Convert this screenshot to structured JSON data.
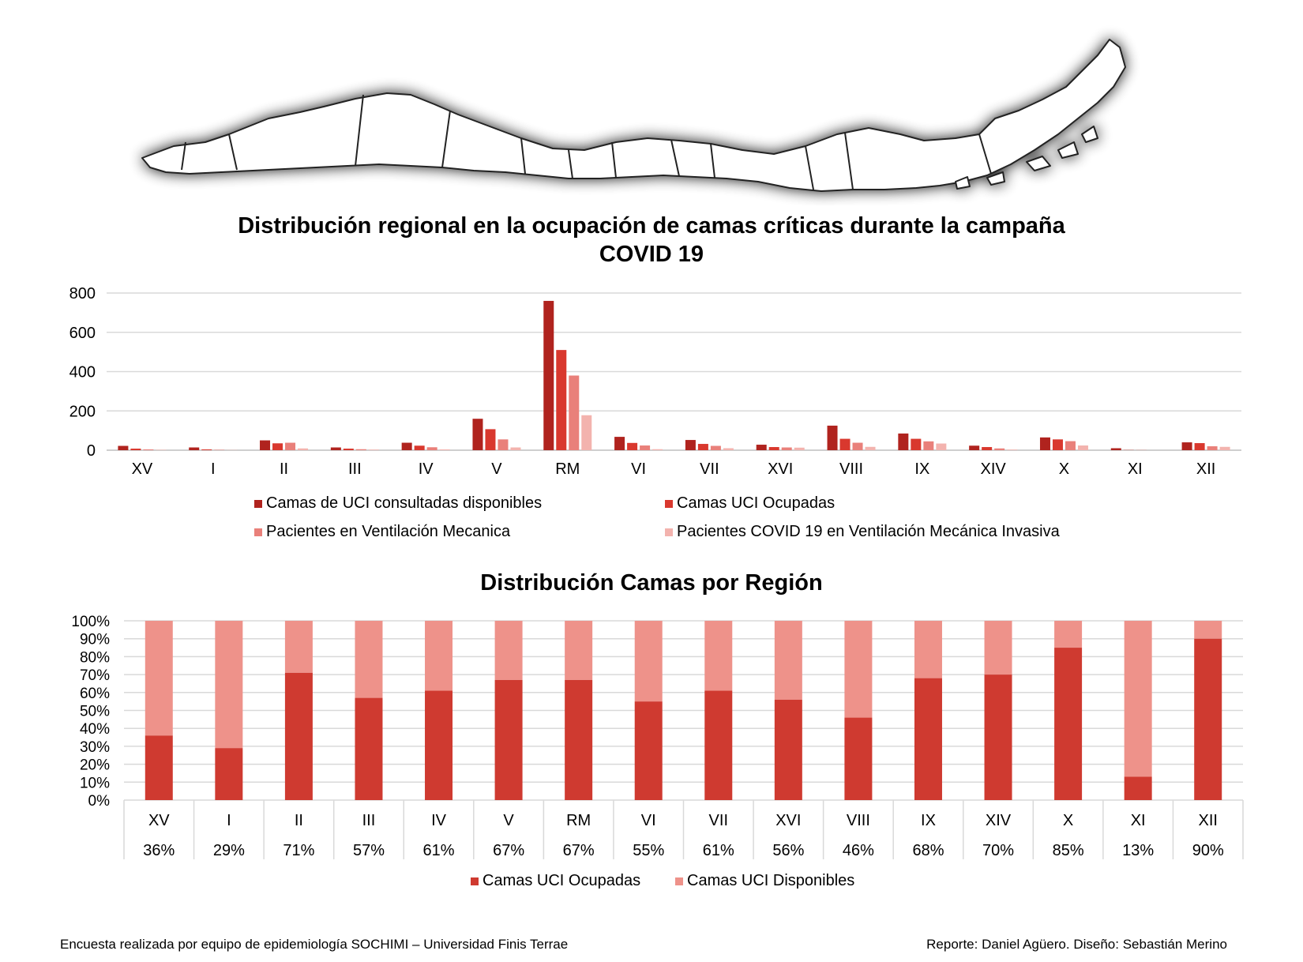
{
  "colors": {
    "avail": "#b0231e",
    "occupied": "#d9382e",
    "vent": "#e9807a",
    "covid": "#f3b3ae",
    "pct_occupied": "#cf3a30",
    "pct_available": "#ee928a",
    "grid": "#d9d9d9"
  },
  "map": {
    "icon": "chile-regions-map"
  },
  "chart_data": [
    {
      "type": "bar",
      "title": "Distribución regional en la ocupación de camas críticas durante la campaña COVID 19",
      "title_lines": [
        "Distribución regional en la ocupación de camas críticas durante la campaña",
        "COVID 19"
      ],
      "categories": [
        "XV",
        "I",
        "II",
        "III",
        "IV",
        "V",
        "RM",
        "VI",
        "VII",
        "XVI",
        "VIII",
        "IX",
        "XIV",
        "X",
        "XI",
        "XII"
      ],
      "ylim": [
        0,
        800
      ],
      "yticks": [
        "0",
        "200",
        "400",
        "600",
        "800"
      ],
      "grid": true,
      "legend_position": "bottom",
      "series": [
        {
          "name": "Camas de UCI consultadas disponibles",
          "color": "#b0231e",
          "values": [
            22,
            14,
            50,
            14,
            38,
            160,
            760,
            68,
            52,
            28,
            125,
            85,
            23,
            65,
            10,
            40
          ]
        },
        {
          "name": "Camas UCI Ocupadas",
          "color": "#d9382e",
          "values": [
            8,
            4,
            35,
            8,
            23,
            107,
            510,
            37,
            32,
            16,
            58,
            58,
            16,
            55,
            1,
            36
          ]
        },
        {
          "name": "Pacientes en Ventilación Mecanica",
          "color": "#e9807a",
          "values": [
            4,
            2,
            38,
            5,
            15,
            55,
            380,
            24,
            22,
            14,
            38,
            45,
            9,
            46,
            1,
            20
          ]
        },
        {
          "name": "Pacientes COVID 19 en Ventilación Mecánica Invasiva",
          "color": "#f3b3ae",
          "values": [
            2,
            1,
            9,
            3,
            4,
            14,
            178,
            5,
            10,
            13,
            17,
            34,
            3,
            24,
            0,
            17
          ]
        }
      ]
    },
    {
      "type": "bar",
      "stacked": true,
      "percent": true,
      "title": "Distribución Camas por Región",
      "categories": [
        "XV",
        "I",
        "II",
        "III",
        "IV",
        "V",
        "RM",
        "VI",
        "VII",
        "XVI",
        "VIII",
        "IX",
        "XIV",
        "X",
        "XI",
        "XII"
      ],
      "ylim": [
        0,
        100
      ],
      "yticks": [
        "0%",
        "10%",
        "20%",
        "30%",
        "40%",
        "50%",
        "60%",
        "70%",
        "80%",
        "90%",
        "100%"
      ],
      "grid": true,
      "legend_position": "bottom",
      "table_row": [
        "36%",
        "29%",
        "71%",
        "57%",
        "61%",
        "67%",
        "67%",
        "55%",
        "61%",
        "56%",
        "46%",
        "68%",
        "70%",
        "85%",
        "13%",
        "90%"
      ],
      "series": [
        {
          "name": "Camas UCI Ocupadas",
          "color": "#cf3a30",
          "values": [
            36,
            29,
            71,
            57,
            61,
            67,
            67,
            55,
            61,
            56,
            46,
            68,
            70,
            85,
            13,
            90
          ]
        },
        {
          "name": "Camas UCI Disponibles",
          "color": "#ee928a",
          "values": [
            64,
            71,
            29,
            43,
            39,
            33,
            33,
            45,
            39,
            44,
            54,
            32,
            30,
            15,
            87,
            10
          ]
        }
      ]
    }
  ],
  "footer": {
    "left": "Encuesta realizada por equipo de epidemiología SOCHIMI – Universidad Finis Terrae",
    "right": "Reporte: Daniel Agüero. Diseño: Sebastián Merino"
  }
}
